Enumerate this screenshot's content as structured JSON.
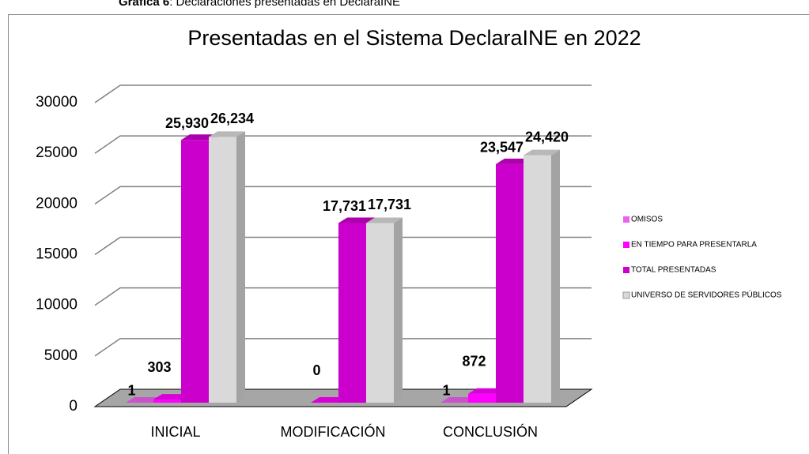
{
  "caption_label": "Gráfica 6",
  "caption_text": ": Declaraciones presentadas en DeclaraINE",
  "chart_data": {
    "type": "bar3d",
    "title": "Presentadas en el Sistema DeclaraINE en 2022",
    "categories": [
      "INICIAL",
      "MODIFICACIÓN",
      "CONCLUSIÓN"
    ],
    "series": [
      {
        "name": "OMISOS",
        "color": "#f060f0",
        "values": [
          1,
          null,
          1
        ],
        "value_labels": [
          "1",
          null,
          "1"
        ]
      },
      {
        "name": "EN TIEMPO PARA PRESENTARLA",
        "color": "#ff00ff",
        "values": [
          303,
          0,
          872
        ],
        "value_labels": [
          "303",
          "0",
          "872"
        ]
      },
      {
        "name": "TOTAL PRESENTADAS",
        "color": "#cc00cc",
        "values": [
          25930,
          17731,
          23547
        ],
        "value_labels": [
          "25,930",
          "17,731",
          "23,547"
        ]
      },
      {
        "name": "UNIVERSO DE SERVIDORES PÚBLICOS",
        "color": "#d9d9d9",
        "values": [
          26234,
          17731,
          24420
        ],
        "value_labels": [
          "26,234",
          "17,731",
          "24,420"
        ]
      }
    ],
    "ylim": [
      0,
      30000
    ],
    "yticks": [
      0,
      5000,
      10000,
      15000,
      20000,
      25000,
      30000
    ],
    "grid": true,
    "legend": "right"
  }
}
